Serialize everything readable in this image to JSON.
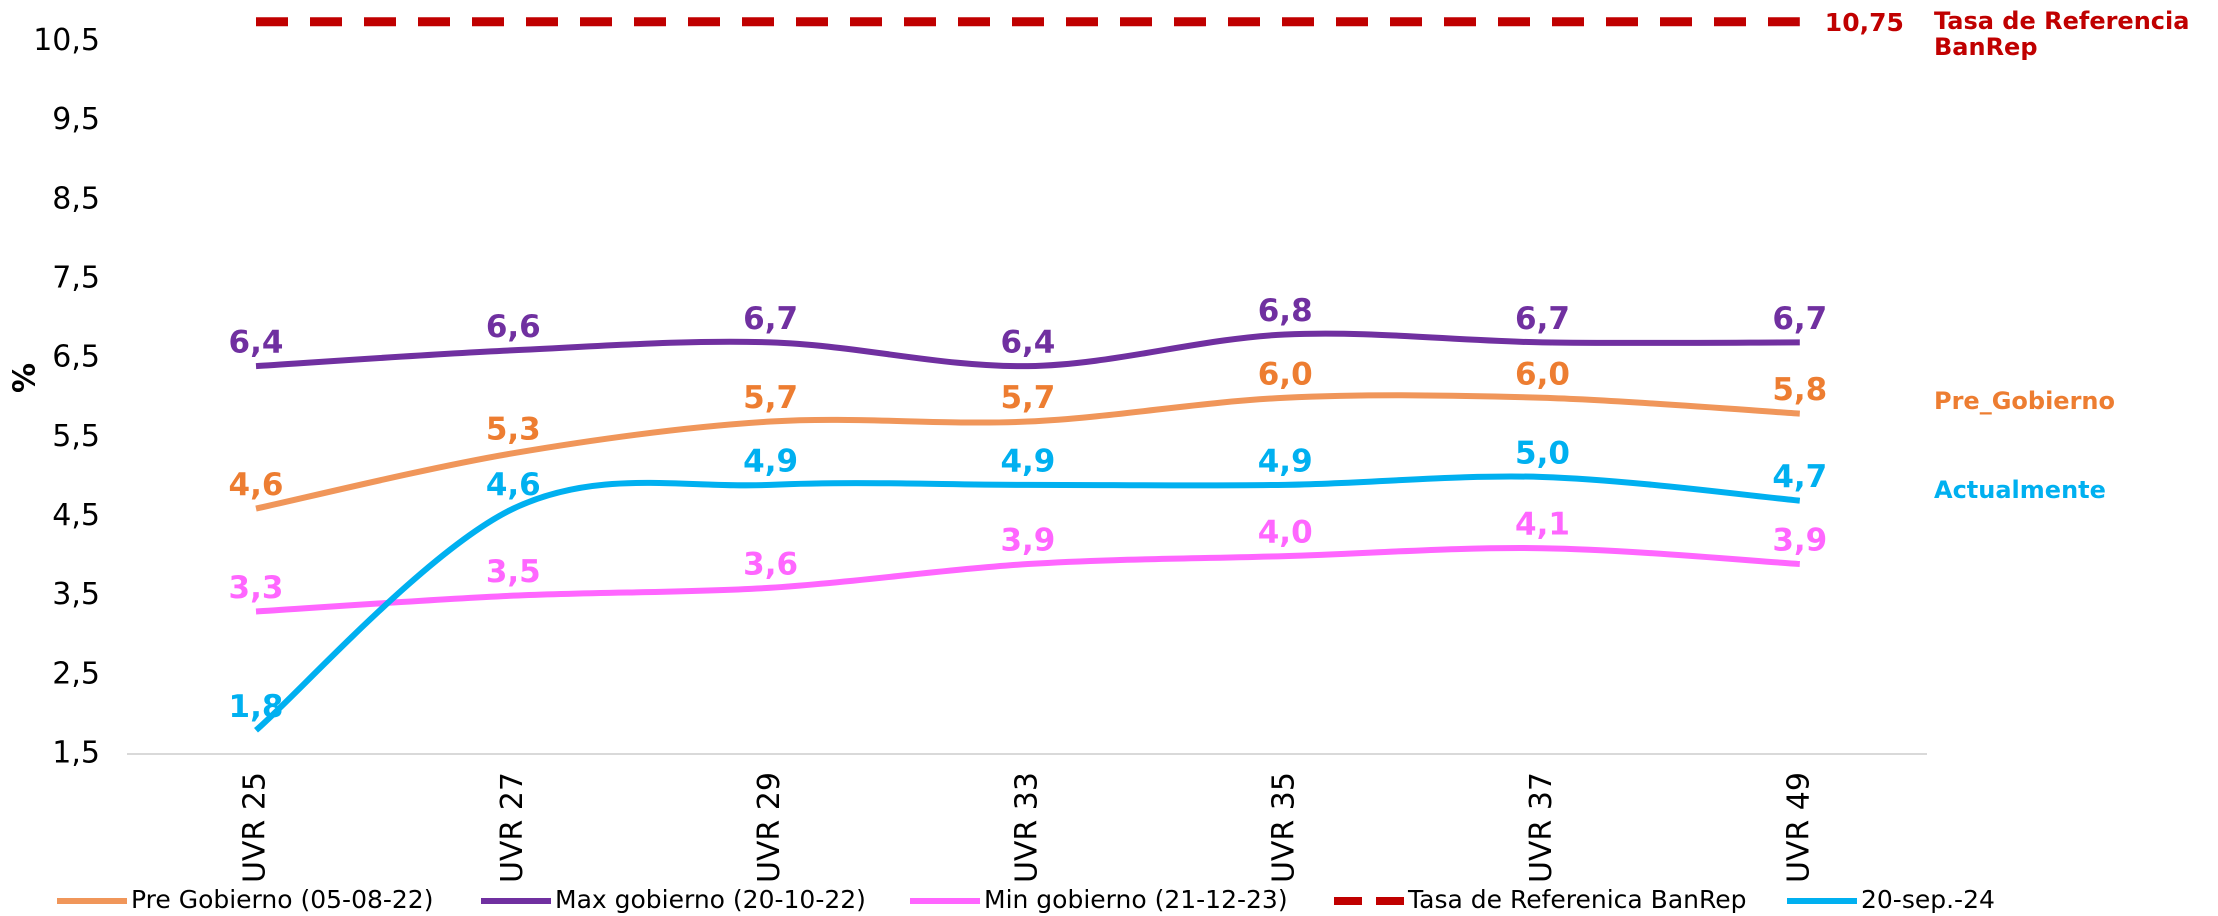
{
  "chart_data": {
    "type": "line",
    "y_label": "%",
    "categories": [
      "UVR 25",
      "UVR 27",
      "UVR 29",
      "UVR 33",
      "UVR 35",
      "UVR 37",
      "UVR 49"
    ],
    "series": [
      {
        "name": "Pre Gobierno (05-08-22)",
        "color": "#f0965a",
        "label_color": "#ed7d31",
        "values": [
          4.6,
          5.3,
          5.7,
          5.7,
          6.0,
          6.0,
          5.8
        ],
        "value_labels": [
          "4,6",
          "5,3",
          "5,7",
          "5,7",
          "6,0",
          "6,0",
          "5,8"
        ]
      },
      {
        "name": "Max gobierno (20-10-22)",
        "color": "#7030a0",
        "label_color": "#7030a0",
        "values": [
          6.4,
          6.6,
          6.7,
          6.4,
          6.8,
          6.7,
          6.7
        ],
        "value_labels": [
          "6,4",
          "6,6",
          "6,7",
          "6,4",
          "6,8",
          "6,7",
          "6,7"
        ]
      },
      {
        "name": "Min gobierno (21-12-23)",
        "color": "#ff66ff",
        "label_color": "#ff66ff",
        "values": [
          3.3,
          3.5,
          3.6,
          3.9,
          4.0,
          4.1,
          3.9
        ],
        "value_labels": [
          "3,3",
          "3,5",
          "3,6",
          "3,9",
          "4,0",
          "4,1",
          "3,9"
        ]
      },
      {
        "name": "Tasa de Referenica BanRep",
        "color": "#c00000",
        "label_color": "#c00000",
        "dashed": true,
        "values": [
          10.75,
          10.75,
          10.75,
          10.75,
          10.75,
          10.75,
          10.75
        ],
        "value_labels": [
          null,
          null,
          null,
          null,
          null,
          null,
          "10,75"
        ]
      },
      {
        "name": "20-sep.-24",
        "color": "#00b0f0",
        "label_color": "#00b0f0",
        "values": [
          1.8,
          4.6,
          4.9,
          4.9,
          4.9,
          5.0,
          4.7
        ],
        "value_labels": [
          "1,8",
          "4,6",
          "4,9",
          "4,9",
          "4,9",
          "5,0",
          "4,7"
        ]
      }
    ],
    "annotations": [
      {
        "text": "Tasa de Referencia",
        "color": "#c00000"
      },
      {
        "text": "BanRep",
        "color": "#c00000"
      },
      {
        "text": "Pre_Gobierno",
        "color": "#ed7d31"
      },
      {
        "text": "Actualmente",
        "color": "#00b0f0"
      }
    ],
    "ylim": [
      1.5,
      11
    ],
    "yticks": [
      {
        "value": 1.5,
        "label": "1,5"
      },
      {
        "value": 2.5,
        "label": "2,5"
      },
      {
        "value": 3.5,
        "label": "3,5"
      },
      {
        "value": 4.5,
        "label": "4,5"
      },
      {
        "value": 5.5,
        "label": "5,5"
      },
      {
        "value": 6.5,
        "label": "6,5"
      },
      {
        "value": 7.5,
        "label": "7,5"
      },
      {
        "value": 8.5,
        "label": "8,5"
      },
      {
        "value": 9.5,
        "label": "9,5"
      },
      {
        "value": 10.5,
        "label": "10,5"
      }
    ],
    "grid": false,
    "legend": "bottom"
  }
}
